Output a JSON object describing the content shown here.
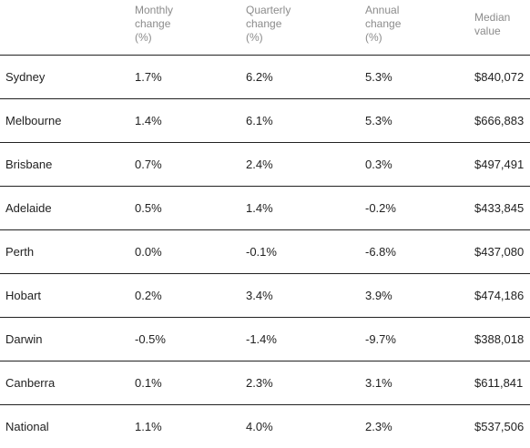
{
  "table": {
    "columns": [
      "",
      "Monthly\nchange\n(%)",
      "Quarterly\nchange\n(%)",
      "Annual\nchange\n(%)",
      "Median\nvalue"
    ],
    "rows": [
      [
        "Sydney",
        "1.7%",
        "6.2%",
        "5.3%",
        "$840,072"
      ],
      [
        "Melbourne",
        "1.4%",
        "6.1%",
        "5.3%",
        "$666,883"
      ],
      [
        "Brisbane",
        "0.7%",
        "2.4%",
        "0.3%",
        "$497,491"
      ],
      [
        "Adelaide",
        "0.5%",
        "1.4%",
        "-0.2%",
        "$433,845"
      ],
      [
        "Perth",
        "0.0%",
        "-0.1%",
        "-6.8%",
        "$437,080"
      ],
      [
        "Hobart",
        "0.2%",
        "3.4%",
        "3.9%",
        "$474,186"
      ],
      [
        "Darwin",
        "-0.5%",
        "-1.4%",
        "-9.7%",
        "$388,018"
      ],
      [
        "Canberra",
        "0.1%",
        "2.3%",
        "3.1%",
        "$611,841"
      ],
      [
        "National",
        "1.1%",
        "4.0%",
        "2.3%",
        "$537,506"
      ]
    ]
  }
}
